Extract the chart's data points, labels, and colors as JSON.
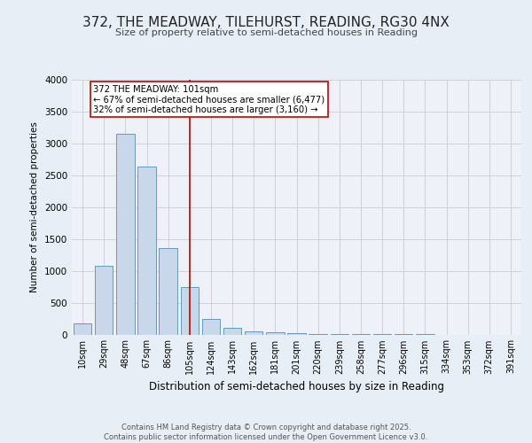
{
  "title": "372, THE MEADWAY, TILEHURST, READING, RG30 4NX",
  "subtitle": "Size of property relative to semi-detached houses in Reading",
  "xlabel": "Distribution of semi-detached houses by size in Reading",
  "ylabel": "Number of semi-detached properties",
  "categories": [
    "10sqm",
    "29sqm",
    "48sqm",
    "67sqm",
    "86sqm",
    "105sqm",
    "124sqm",
    "143sqm",
    "162sqm",
    "181sqm",
    "201sqm",
    "220sqm",
    "239sqm",
    "258sqm",
    "277sqm",
    "296sqm",
    "315sqm",
    "334sqm",
    "353sqm",
    "372sqm",
    "391sqm"
  ],
  "values": [
    170,
    1080,
    3150,
    2630,
    1350,
    750,
    250,
    100,
    55,
    30,
    15,
    8,
    4,
    3,
    2,
    1,
    1,
    0,
    0,
    0,
    0
  ],
  "bar_color": "#c8d8ea",
  "bar_edge_color": "#6699bb",
  "vline_x_index": 5,
  "vline_color": "#cc0000",
  "annotation_text": "372 THE MEADWAY: 101sqm\n← 67% of semi-detached houses are smaller (6,477)\n32% of semi-detached houses are larger (3,160) →",
  "annotation_box_color": "#ffffff",
  "annotation_box_edge_color": "#cc0000",
  "background_color": "#e8eef5",
  "plot_background_color": "#eef2f8",
  "footer_text": "Contains HM Land Registry data © Crown copyright and database right 2025.\nContains public sector information licensed under the Open Government Licence v3.0.",
  "ylim": [
    0,
    4000
  ],
  "yticks": [
    0,
    500,
    1000,
    1500,
    2000,
    2500,
    3000,
    3500,
    4000
  ]
}
